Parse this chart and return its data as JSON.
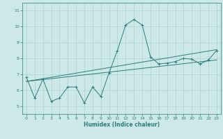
{
  "xlabel": "Humidex (Indice chaleur)",
  "bg_color": "#cce8e8",
  "grid_color": "#aacccc",
  "line_color": "#2d7c7c",
  "xlim": [
    -0.5,
    23.5
  ],
  "ylim": [
    4.5,
    11.5
  ],
  "xticks": [
    0,
    1,
    2,
    3,
    4,
    5,
    6,
    7,
    8,
    9,
    10,
    11,
    12,
    13,
    14,
    15,
    16,
    17,
    18,
    19,
    20,
    21,
    22,
    23
  ],
  "yticks": [
    5,
    6,
    7,
    8,
    9,
    10,
    11
  ],
  "series1_x": [
    0,
    1,
    2,
    3,
    4,
    5,
    6,
    7,
    8,
    9,
    10,
    11,
    12,
    13,
    14,
    15,
    16,
    17,
    18,
    19,
    20,
    21,
    22,
    23
  ],
  "series1_y": [
    6.8,
    5.5,
    6.7,
    5.3,
    5.5,
    6.2,
    6.2,
    5.2,
    6.2,
    5.6,
    7.1,
    8.5,
    10.1,
    10.45,
    10.1,
    8.1,
    7.65,
    7.7,
    7.8,
    8.0,
    7.95,
    7.65,
    7.9,
    8.5
  ],
  "series2_x": [
    0,
    23
  ],
  "series2_y": [
    6.55,
    7.9
  ],
  "series3_x": [
    0,
    23
  ],
  "series3_y": [
    6.55,
    8.55
  ],
  "marker": "+",
  "lw": 0.7,
  "ms": 2.5,
  "tick_fs": 4.5,
  "xlabel_fs": 5.5
}
